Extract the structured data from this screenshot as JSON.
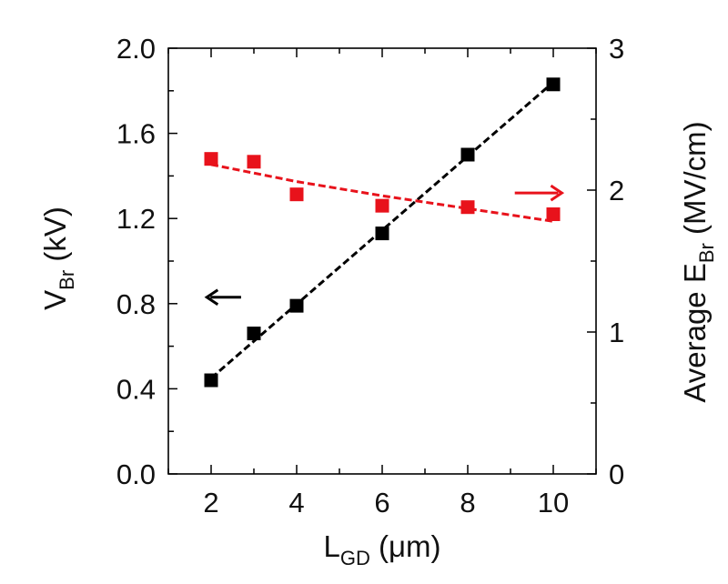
{
  "chart_data": {
    "type": "scatter",
    "title": "",
    "x": [
      2,
      3,
      4,
      6,
      8,
      10
    ],
    "xlim": [
      1,
      11
    ],
    "xticks": [
      "2",
      "4",
      "6",
      "8",
      "10"
    ],
    "xlabel": {
      "main": "L",
      "sub": "GD",
      "unit": " (μm)"
    },
    "ylabel_left": {
      "main": "V",
      "sub": "Br",
      "unit": " (kV)"
    },
    "ylabel_right": {
      "main": "Average E",
      "sub": "Br",
      "unit": " (MV/cm)"
    },
    "ylim_left": [
      0,
      2
    ],
    "ylim_right": [
      0,
      3
    ],
    "yticks_left": [
      "0.0",
      "0.4",
      "0.8",
      "1.2",
      "1.6",
      "2.0"
    ],
    "yticks_right": [
      "0",
      "1",
      "2",
      "3"
    ],
    "grid": false,
    "legend": "none",
    "series": [
      {
        "axis": "left",
        "color": "#000000",
        "marker": "square",
        "values": [
          0.44,
          0.66,
          0.79,
          1.13,
          1.5,
          1.83
        ],
        "fit": {
          "type": "linear",
          "x": [
            2,
            10
          ],
          "y": [
            0.45,
            1.84
          ],
          "style": "dashed"
        },
        "arrow": {
          "direction": "left",
          "x": [
            1.9,
            2.7
          ],
          "y": 0.83
        }
      },
      {
        "axis": "right",
        "color": "#e8121b",
        "marker": "square",
        "values": [
          2.22,
          2.2,
          1.97,
          1.89,
          1.88,
          1.83
        ],
        "fit": {
          "type": "curve",
          "x": [
            2,
            4,
            6,
            8,
            10
          ],
          "y": [
            2.18,
            2.06,
            1.96,
            1.87,
            1.78
          ],
          "style": "dashed"
        },
        "arrow": {
          "direction": "right",
          "x": [
            9.1,
            10.2
          ],
          "y": 1.98
        }
      }
    ]
  }
}
